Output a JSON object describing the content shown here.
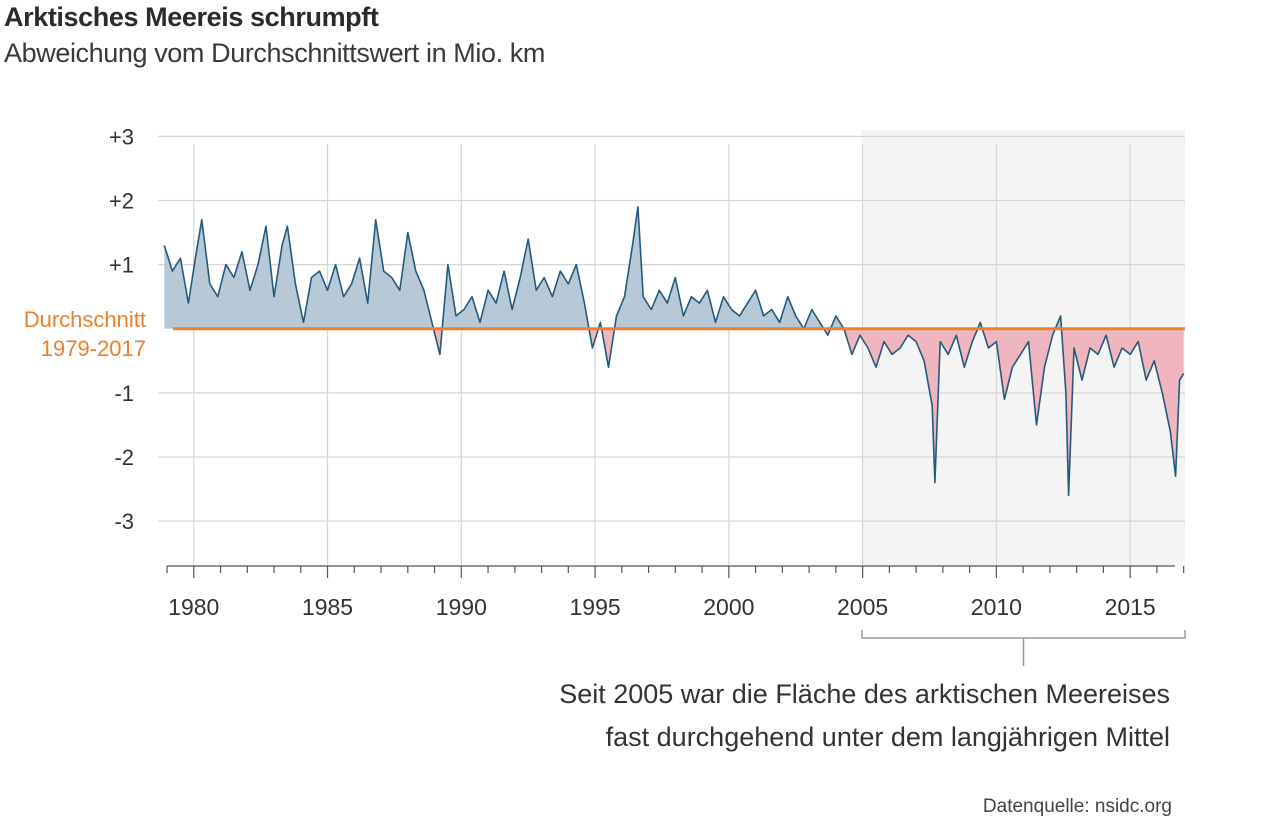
{
  "title": "Arktisches Meereis schrumpft",
  "subtitle": "Abweichung vom Durchschnittswert in Mio. km",
  "average_label": [
    "Durchschnitt",
    "1979-2017"
  ],
  "annotation": [
    "Seit 2005 war die Fläche des arktischen Meereises",
    "fast durchgehend unter dem  langjährigen Mittel"
  ],
  "source": "Datenquelle: nsidc.org",
  "colors": {
    "above_fill": "#b7c9d6",
    "below_fill": "#f0b6bf",
    "line": "#245a7d",
    "average_line": "#ee7f2d",
    "highlight_bg": "#f4f4f4",
    "grid": "#d6d6d6"
  },
  "chart_data": {
    "type": "area",
    "y_ticks": [
      3,
      2,
      1,
      0,
      -1,
      -2,
      -3
    ],
    "y_tick_labels": [
      "+3",
      "+2",
      "+1",
      "",
      "-1",
      "-2",
      "-3"
    ],
    "x_ticks": [
      1980,
      1985,
      1990,
      1995,
      2000,
      2005,
      2010,
      2015
    ],
    "x_tick_labels": [
      "1980",
      "1985",
      "1990",
      "1995",
      "2000",
      "2005",
      "2010",
      "2015"
    ],
    "xlim": [
      1978.85,
      2017.05
    ],
    "ylim": [
      -3.7,
      3.1
    ],
    "highlight_range": [
      2004.98,
      2017.05
    ],
    "series": [
      {
        "values_approx": true,
        "x": [
          1978.9,
          1979.2,
          1979.5,
          1979.8,
          1980.1,
          1980.3,
          1980.6,
          1980.9,
          1981.2,
          1981.5,
          1981.8,
          1982.1,
          1982.4,
          1982.7,
          1983.0,
          1983.3,
          1983.5,
          1983.8,
          1984.1,
          1984.4,
          1984.7,
          1985.0,
          1985.3,
          1985.6,
          1985.9,
          1986.2,
          1986.5,
          1986.8,
          1987.1,
          1987.4,
          1987.7,
          1988.0,
          1988.3,
          1988.6,
          1988.9,
          1989.2,
          1989.5,
          1989.8,
          1990.1,
          1990.4,
          1990.7,
          1991.0,
          1991.3,
          1991.6,
          1991.9,
          1992.2,
          1992.5,
          1992.8,
          1993.1,
          1993.4,
          1993.7,
          1994.0,
          1994.3,
          1994.6,
          1994.9,
          1995.2,
          1995.5,
          1995.8,
          1996.1,
          1996.4,
          1996.6,
          1996.8,
          1997.1,
          1997.4,
          1997.7,
          1998.0,
          1998.3,
          1998.6,
          1998.9,
          1999.2,
          1999.5,
          1999.8,
          2000.1,
          2000.4,
          2000.7,
          2001.0,
          2001.3,
          2001.6,
          2001.9,
          2002.2,
          2002.5,
          2002.8,
          2003.1,
          2003.4,
          2003.7,
          2004.0,
          2004.3,
          2004.6,
          2004.9,
          2005.2,
          2005.5,
          2005.8,
          2006.1,
          2006.4,
          2006.7,
          2007.0,
          2007.3,
          2007.6,
          2007.7,
          2007.9,
          2008.2,
          2008.5,
          2008.8,
          2009.1,
          2009.4,
          2009.7,
          2010.0,
          2010.3,
          2010.6,
          2010.9,
          2011.2,
          2011.5,
          2011.8,
          2012.1,
          2012.4,
          2012.6,
          2012.7,
          2012.9,
          2013.2,
          2013.5,
          2013.8,
          2014.1,
          2014.4,
          2014.7,
          2015.0,
          2015.3,
          2015.6,
          2015.9,
          2016.2,
          2016.5,
          2016.7,
          2016.85,
          2017.0
        ],
        "values": [
          1.3,
          0.9,
          1.1,
          0.4,
          1.2,
          1.7,
          0.7,
          0.5,
          1.0,
          0.8,
          1.2,
          0.6,
          1.0,
          1.6,
          0.5,
          1.3,
          1.6,
          0.7,
          0.1,
          0.8,
          0.9,
          0.6,
          1.0,
          0.5,
          0.7,
          1.1,
          0.4,
          1.7,
          0.9,
          0.8,
          0.6,
          1.5,
          0.9,
          0.6,
          0.1,
          -0.4,
          1.0,
          0.2,
          0.3,
          0.5,
          0.1,
          0.6,
          0.4,
          0.9,
          0.3,
          0.8,
          1.4,
          0.6,
          0.8,
          0.5,
          0.9,
          0.7,
          1.0,
          0.4,
          -0.3,
          0.1,
          -0.6,
          0.2,
          0.5,
          1.3,
          1.9,
          0.5,
          0.3,
          0.6,
          0.4,
          0.8,
          0.2,
          0.5,
          0.4,
          0.6,
          0.1,
          0.5,
          0.3,
          0.2,
          0.4,
          0.6,
          0.2,
          0.3,
          0.1,
          0.5,
          0.2,
          0.0,
          0.3,
          0.1,
          -0.1,
          0.2,
          0.0,
          -0.4,
          -0.1,
          -0.3,
          -0.6,
          -0.2,
          -0.4,
          -0.3,
          -0.1,
          -0.2,
          -0.5,
          -1.2,
          -2.4,
          -0.2,
          -0.4,
          -0.1,
          -0.6,
          -0.2,
          0.1,
          -0.3,
          -0.2,
          -1.1,
          -0.6,
          -0.4,
          -0.2,
          -1.5,
          -0.6,
          -0.1,
          0.2,
          -1.0,
          -2.6,
          -0.3,
          -0.8,
          -0.3,
          -0.4,
          -0.1,
          -0.6,
          -0.3,
          -0.4,
          -0.2,
          -0.8,
          -0.5,
          -1.0,
          -1.6,
          -2.3,
          -0.8,
          -0.7
        ]
      }
    ]
  }
}
